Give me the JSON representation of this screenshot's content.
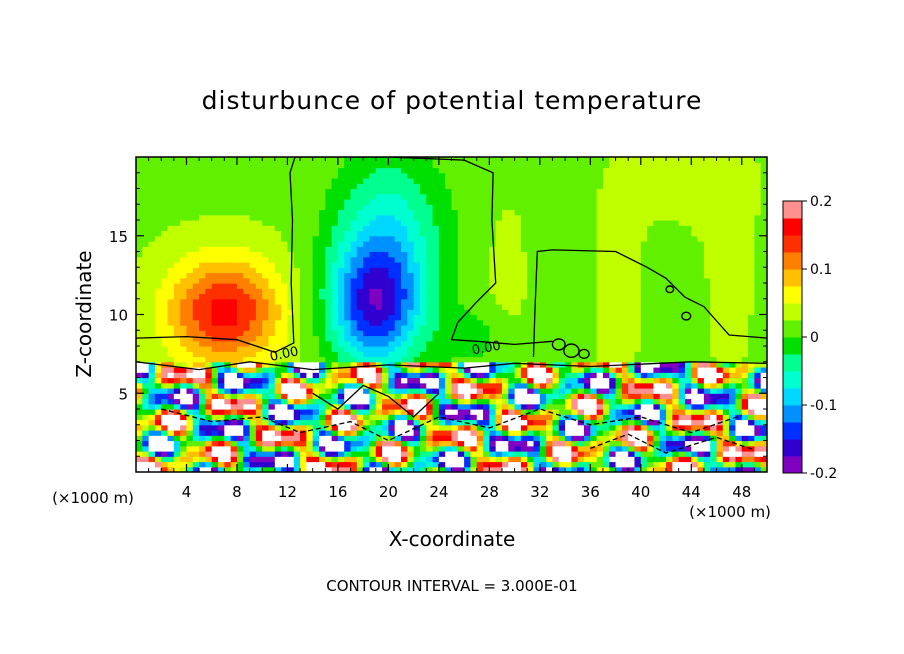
{
  "chart_data": {
    "type": "heatmap",
    "title": "disturbunce of potential temperature",
    "xlabel": "X-coordinate",
    "ylabel": "Z-coordinate",
    "x_unit_label": "(×1000 m)",
    "y_unit_label": "(×1000 m)",
    "xlim": [
      0,
      50
    ],
    "ylim": [
      0,
      20
    ],
    "x_ticks": [
      4,
      8,
      12,
      16,
      20,
      24,
      28,
      32,
      36,
      40,
      44,
      48
    ],
    "x_tick_labels": [
      "4",
      "8",
      "12",
      "16",
      "20",
      "24",
      "28",
      "32",
      "36",
      "40",
      "44",
      "48"
    ],
    "y_ticks": [
      5,
      10,
      15
    ],
    "y_tick_labels": [
      "5",
      "10",
      "15"
    ],
    "colorbar": {
      "range": [
        -0.2,
        0.2
      ],
      "ticks": [
        -0.2,
        -0.1,
        0,
        0.1,
        0.2
      ],
      "tick_labels": [
        "-0.2",
        "-0.1",
        "0",
        "0.1",
        "0.2"
      ],
      "colors": [
        "#7f00c0",
        "#3000d0",
        "#0030ff",
        "#0090ff",
        "#00d8ff",
        "#00ffd0",
        "#00ff90",
        "#00e000",
        "#60f000",
        "#c0ff00",
        "#ffff00",
        "#ffc000",
        "#ff8000",
        "#ff3000",
        "#ff0000",
        "#ff9090"
      ]
    },
    "features": [
      {
        "kind": "warm",
        "x": 7,
        "z": 10,
        "amp": 0.14
      },
      {
        "kind": "cold",
        "x": 19,
        "z": 11,
        "amp": -0.17
      },
      {
        "kind": "cold",
        "x": 20,
        "z": 16,
        "amp": -0.07
      }
    ],
    "contour_label": "0.00",
    "contour_interval_text": "CONTOUR INTERVAL = 3.000E-01"
  }
}
